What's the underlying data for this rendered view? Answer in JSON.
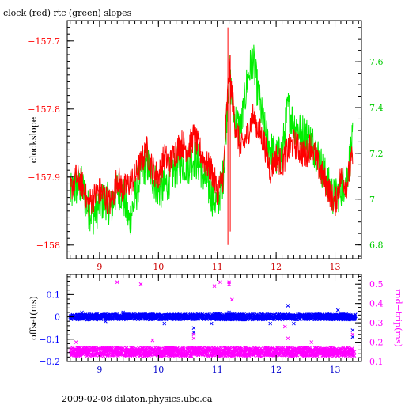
{
  "title": "clock (red) rtc (green) slopes",
  "footer": "2009-02-08 dilaton.physics.ubc.ca",
  "colors": {
    "clock": "#ff0000",
    "rtc": "#00ee00",
    "offset": "#0000ff",
    "rndtrip": "#ff00ff",
    "frame": "#000000",
    "top_xticks": "#cc0000",
    "bottom_xticks": "#0000cc"
  },
  "chart_data": [
    {
      "type": "line",
      "title": "clock (red) rtc (green) slopes",
      "xlim": [
        8.45,
        13.45
      ],
      "xticks": [
        9,
        10,
        11,
        12,
        13
      ],
      "ylabel_left": "clockslope",
      "ylim_left": [
        -158.02,
        -157.67
      ],
      "yticks_left": [
        -158,
        -157.9,
        -157.8,
        -157.7
      ],
      "ytick_labels_left": [
        "−158",
        "−157.9",
        "−157.8",
        "−157.7"
      ],
      "ylim_right": [
        6.74,
        7.78
      ],
      "yticks_right": [
        6.8,
        7,
        7.2,
        7.4,
        7.6
      ],
      "ytick_labels_right": [
        "6.8",
        "7",
        "7.2",
        "7.4",
        "7.6"
      ],
      "grid": false,
      "series": [
        {
          "name": "clock",
          "axis": "left",
          "x": [
            8.5,
            8.6,
            8.7,
            8.8,
            8.9,
            9.0,
            9.1,
            9.2,
            9.3,
            9.4,
            9.5,
            9.6,
            9.7,
            9.8,
            9.9,
            10.0,
            10.1,
            10.2,
            10.3,
            10.4,
            10.5,
            10.6,
            10.7,
            10.8,
            10.9,
            11.0,
            11.1,
            11.2,
            11.3,
            11.4,
            11.5,
            11.6,
            11.7,
            11.8,
            11.9,
            12.0,
            12.1,
            12.2,
            12.3,
            12.4,
            12.5,
            12.6,
            12.7,
            12.8,
            12.9,
            13.0,
            13.1,
            13.2,
            13.3
          ],
          "y": [
            -157.92,
            -157.9,
            -157.91,
            -157.94,
            -157.93,
            -157.92,
            -157.93,
            -157.94,
            -157.9,
            -157.92,
            -157.91,
            -157.9,
            -157.88,
            -157.86,
            -157.89,
            -157.9,
            -157.87,
            -157.88,
            -157.86,
            -157.85,
            -157.86,
            -157.84,
            -157.86,
            -157.88,
            -157.89,
            -157.92,
            -157.9,
            -157.74,
            -157.82,
            -157.86,
            -157.84,
            -157.81,
            -157.83,
            -157.85,
            -157.89,
            -157.87,
            -157.88,
            -157.86,
            -157.85,
            -157.86,
            -157.87,
            -157.85,
            -157.88,
            -157.9,
            -157.92,
            -157.94,
            -157.9,
            -157.91,
            -157.87
          ]
        },
        {
          "name": "rtc",
          "axis": "right",
          "x": [
            8.5,
            8.6,
            8.7,
            8.8,
            8.9,
            9.0,
            9.1,
            9.2,
            9.3,
            9.4,
            9.5,
            9.6,
            9.7,
            9.8,
            9.9,
            10.0,
            10.1,
            10.2,
            10.3,
            10.4,
            10.5,
            10.6,
            10.7,
            10.8,
            10.9,
            11.0,
            11.1,
            11.2,
            11.3,
            11.4,
            11.5,
            11.6,
            11.7,
            11.8,
            11.9,
            12.0,
            12.1,
            12.2,
            12.3,
            12.4,
            12.5,
            12.6,
            12.7,
            12.8,
            12.9,
            13.0,
            13.1,
            13.2,
            13.3
          ],
          "y": [
            7.02,
            7.05,
            7.06,
            6.96,
            6.93,
            6.98,
            7.0,
            6.96,
            7.05,
            7.02,
            6.9,
            7.0,
            7.12,
            7.16,
            7.1,
            7.04,
            7.05,
            7.1,
            7.14,
            7.16,
            7.15,
            7.18,
            7.15,
            7.08,
            7.02,
            6.98,
            7.1,
            7.55,
            7.35,
            7.3,
            7.5,
            7.62,
            7.45,
            7.3,
            7.22,
            7.18,
            7.2,
            7.4,
            7.33,
            7.3,
            7.28,
            7.25,
            7.2,
            7.12,
            7.05,
            7.0,
            7.05,
            7.1,
            7.25
          ]
        }
      ]
    },
    {
      "type": "scatter",
      "xlim": [
        8.45,
        13.45
      ],
      "xticks": [
        9,
        10,
        11,
        12,
        13
      ],
      "ylabel_left": "offset(ms)",
      "ylim_left": [
        -0.2,
        0.19
      ],
      "yticks_left": [
        -0.2,
        -0.1,
        0,
        0.1
      ],
      "ytick_labels_left": [
        "−0.2",
        "−0.1",
        "0",
        "0.1"
      ],
      "ylabel_right": "rnd−trip(ms)",
      "ylim_right": [
        0.1,
        0.55
      ],
      "yticks_right": [
        0.1,
        0.2,
        0.3,
        0.4,
        0.5
      ],
      "ytick_labels_right": [
        "0.1",
        "0.2",
        "0.3",
        "0.4",
        "0.5"
      ],
      "grid": false,
      "series": [
        {
          "name": "offset",
          "axis": "left",
          "marker": "x",
          "baseline": 0.0,
          "outliers": [
            [
              8.7,
              0.02
            ],
            [
              9.1,
              -0.02
            ],
            [
              9.4,
              0.02
            ],
            [
              10.1,
              -0.03
            ],
            [
              10.6,
              -0.05
            ],
            [
              10.6,
              -0.07
            ],
            [
              10.9,
              -0.03
            ],
            [
              11.2,
              0.02
            ],
            [
              11.9,
              -0.03
            ],
            [
              12.2,
              0.05
            ],
            [
              12.3,
              -0.03
            ],
            [
              13.05,
              0.03
            ],
            [
              13.3,
              -0.06
            ],
            [
              13.3,
              -0.09
            ]
          ]
        },
        {
          "name": "rnd-trip",
          "axis": "right",
          "marker": "x",
          "baseline": 0.15,
          "outliers": [
            [
              9.3,
              0.51
            ],
            [
              9.7,
              0.5
            ],
            [
              10.95,
              0.49
            ],
            [
              11.05,
              0.51
            ],
            [
              11.2,
              0.51
            ],
            [
              11.2,
              0.5
            ],
            [
              11.25,
              0.42
            ],
            [
              10.6,
              0.24
            ],
            [
              10.6,
              0.22
            ],
            [
              12.15,
              0.28
            ],
            [
              12.2,
              0.22
            ],
            [
              13.3,
              0.24
            ],
            [
              8.6,
              0.2
            ],
            [
              9.9,
              0.21
            ],
            [
              12.6,
              0.2
            ]
          ]
        }
      ]
    }
  ]
}
